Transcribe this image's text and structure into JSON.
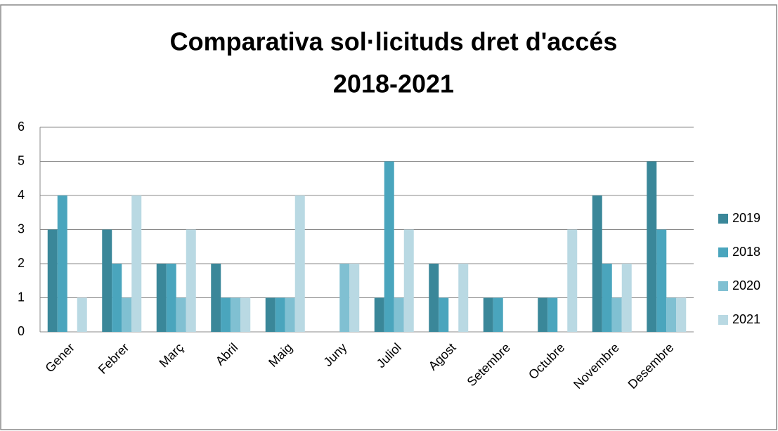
{
  "chart_data": {
    "type": "bar",
    "title": [
      "Comparativa sol·licituds dret d'accés",
      "2018-2021"
    ],
    "categories": [
      "Gener",
      "Febrer",
      "Març",
      "Abril",
      "Maig",
      "Juny",
      "Juliol",
      "Agost",
      "Setembre",
      "Octubre",
      "Novembre",
      "Desembre"
    ],
    "series": [
      {
        "name": "2019",
        "color": "#3a8799",
        "values": [
          3,
          3,
          2,
          2,
          1,
          0,
          1,
          2,
          1,
          1,
          4,
          5
        ]
      },
      {
        "name": "2018",
        "color": "#4aa5bd",
        "values": [
          4,
          2,
          2,
          1,
          1,
          0,
          5,
          1,
          1,
          1,
          2,
          3
        ]
      },
      {
        "name": "2020",
        "color": "#80c0d2",
        "values": [
          0,
          1,
          1,
          1,
          1,
          2,
          1,
          0,
          0,
          0,
          1,
          1
        ]
      },
      {
        "name": "2021",
        "color": "#b9d9e3",
        "values": [
          1,
          4,
          3,
          1,
          4,
          2,
          3,
          2,
          0,
          3,
          2,
          1
        ]
      }
    ],
    "ylim": [
      0,
      6
    ],
    "yticks": [
      0,
      1,
      2,
      3,
      4,
      5,
      6
    ],
    "grid": true,
    "legend": "right"
  }
}
